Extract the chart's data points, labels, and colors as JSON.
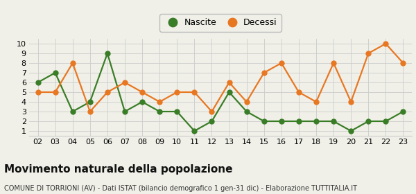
{
  "years": [
    "02",
    "03",
    "04",
    "05",
    "06",
    "07",
    "08",
    "09",
    "10",
    "11",
    "12",
    "13",
    "14",
    "15",
    "16",
    "17",
    "18",
    "19",
    "20",
    "21",
    "22",
    "23"
  ],
  "nascite": [
    6,
    7,
    3,
    4,
    9,
    3,
    4,
    3,
    3,
    1,
    2,
    5,
    3,
    2,
    2,
    2,
    2,
    2,
    1,
    2,
    2,
    3
  ],
  "decessi": [
    5,
    5,
    8,
    3,
    5,
    6,
    5,
    4,
    5,
    5,
    3,
    6,
    4,
    7,
    8,
    5,
    4,
    8,
    4,
    9,
    10,
    8
  ],
  "nascite_color": "#3a7d27",
  "decessi_color": "#e87722",
  "title": "Movimento naturale della popolazione",
  "subtitle": "COMUNE DI TORRIONI (AV) - Dati ISTAT (bilancio demografico 1 gen-31 dic) - Elaborazione TUTTITALIA.IT",
  "ylim": [
    0.5,
    10.5
  ],
  "yticks": [
    1,
    2,
    3,
    4,
    5,
    6,
    7,
    8,
    9,
    10
  ],
  "legend_nascite": "Nascite",
  "legend_decessi": "Decessi",
  "bg_color": "#f0f0e8",
  "grid_color": "#cccccc",
  "marker_size": 5,
  "line_width": 1.6,
  "title_fontsize": 11,
  "subtitle_fontsize": 7,
  "tick_fontsize": 8,
  "legend_fontsize": 9
}
